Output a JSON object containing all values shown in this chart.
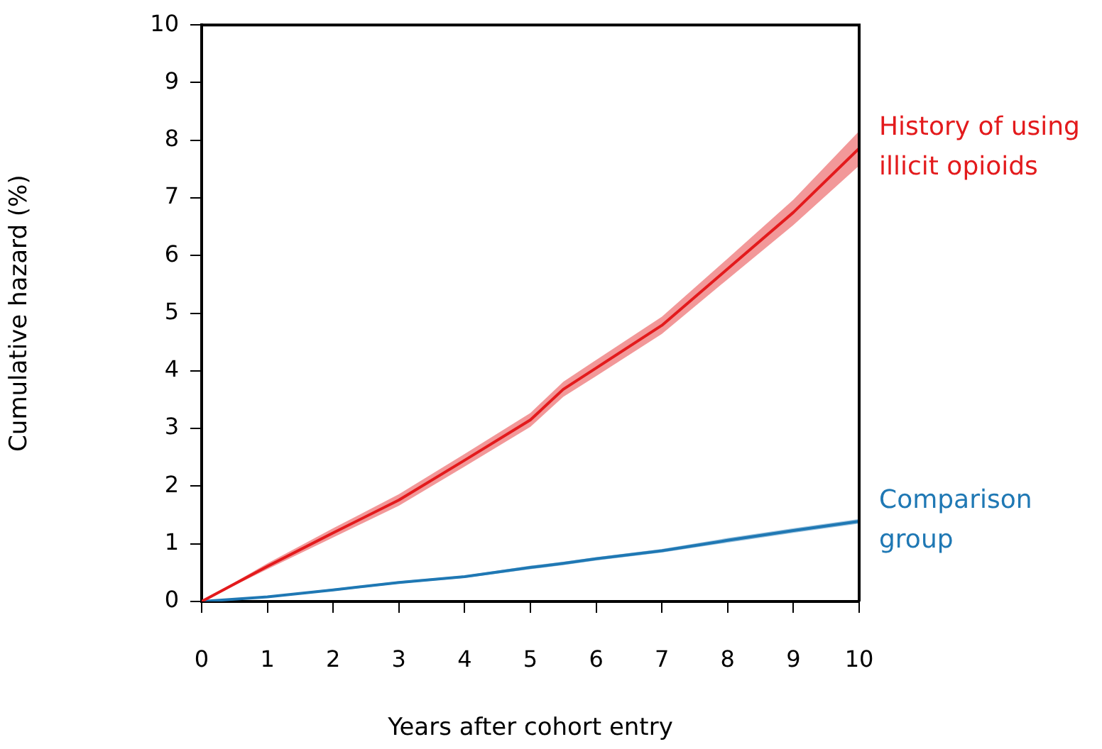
{
  "chart_data": {
    "type": "line",
    "xlabel": "Years after cohort entry",
    "ylabel": "Cumulative hazard (%)",
    "xlim": [
      0,
      10
    ],
    "xticks": [
      0,
      1,
      2,
      3,
      4,
      5,
      6,
      7,
      8,
      9,
      10
    ],
    "ylim": [
      0,
      10
    ],
    "yticks": [
      0,
      1,
      2,
      3,
      4,
      5,
      6,
      7,
      8,
      9,
      10
    ],
    "grid": false,
    "legend": false,
    "marker": "none",
    "line_style": "solid",
    "x": [
      0,
      1,
      2,
      3,
      4,
      5,
      5.5,
      6,
      7,
      8,
      9,
      10
    ],
    "series": [
      {
        "name": "History of using illicit opioids",
        "color": "#e31a1c",
        "values": [
          0,
          0.61,
          1.19,
          1.76,
          2.45,
          3.15,
          3.68,
          4.05,
          4.79,
          5.77,
          6.75,
          7.86
        ],
        "lower": [
          0,
          0.56,
          1.11,
          1.66,
          2.34,
          3.03,
          3.55,
          3.91,
          4.64,
          5.59,
          6.53,
          7.56
        ],
        "upper": [
          0,
          0.66,
          1.27,
          1.86,
          2.56,
          3.27,
          3.81,
          4.19,
          4.94,
          5.95,
          6.97,
          8.16
        ]
      },
      {
        "name": "Comparison group",
        "color": "#1f78b4",
        "values": [
          0,
          0.08,
          0.2,
          0.33,
          0.43,
          0.59,
          0.66,
          0.74,
          0.88,
          1.06,
          1.23,
          1.39
        ],
        "lower": [
          0,
          0.07,
          0.18,
          0.31,
          0.41,
          0.56,
          0.63,
          0.71,
          0.85,
          1.02,
          1.19,
          1.35
        ],
        "upper": [
          0,
          0.09,
          0.22,
          0.35,
          0.45,
          0.62,
          0.69,
          0.77,
          0.91,
          1.1,
          1.27,
          1.43
        ]
      }
    ]
  }
}
